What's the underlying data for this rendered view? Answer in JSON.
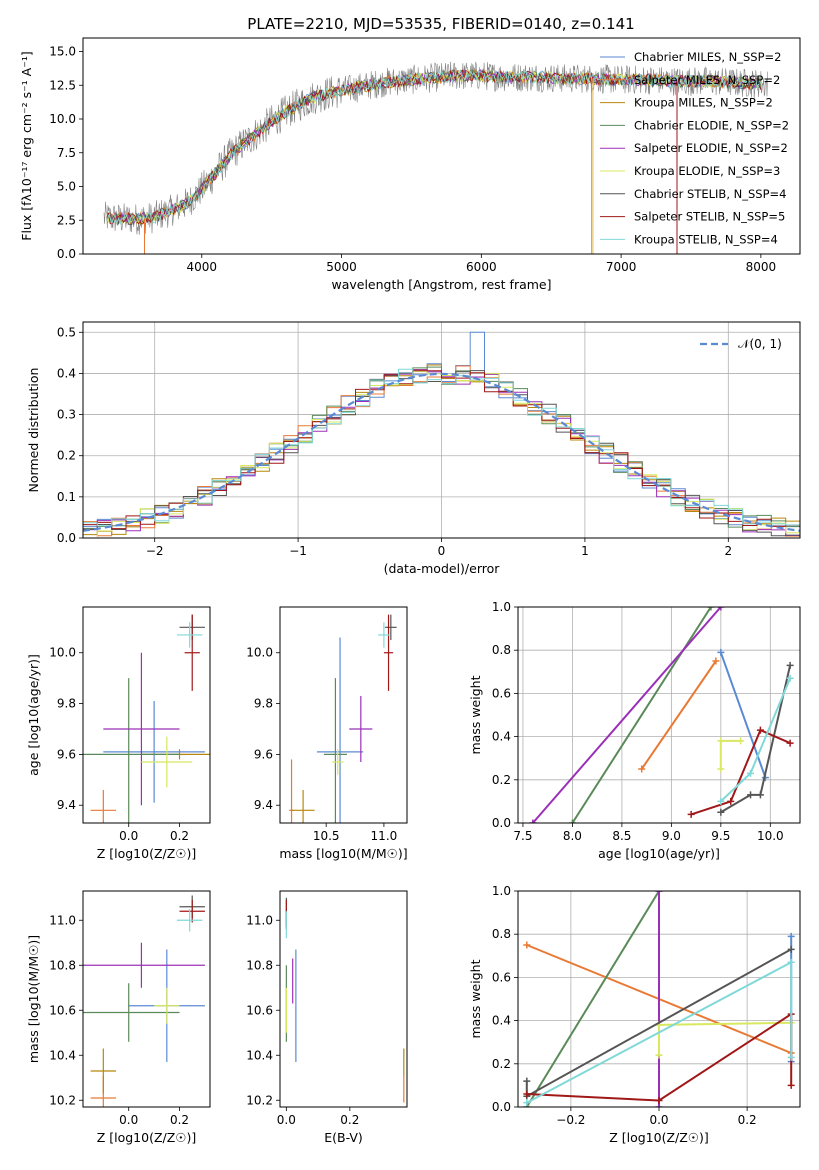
{
  "figure_title": "PLATE=2210, MJD=53535, FIBERID=0140, z=0.141",
  "series_colors": [
    "#5b8ad4",
    "#e87a35",
    "#b8860b",
    "#5a8a5a",
    "#9b30b8",
    "#d8e860",
    "#555555",
    "#a01818",
    "#80d8d8"
  ],
  "chart_data": [
    {
      "id": "spectrum",
      "type": "line",
      "title": "PLATE=2210, MJD=53535, FIBERID=0140, z=0.141",
      "xlabel": "wavelength [Angstrom, rest frame]",
      "ylabel": "Flux [fλ10⁻¹⁷ erg cm⁻² s⁻¹ A⁻¹]",
      "xlim": [
        3150,
        8280
      ],
      "ylim": [
        0,
        16
      ],
      "xticks": [
        4000,
        5000,
        6000,
        7000,
        8000
      ],
      "yticks": [
        0.0,
        2.5,
        5.0,
        7.5,
        10.0,
        12.5,
        15.0
      ],
      "ytick_labels": [
        "0.0",
        "2.5",
        "5.0",
        "7.5",
        "10.0",
        "12.5",
        "15.0"
      ],
      "grid": false,
      "legend_position": "upper-right",
      "legend": [
        "Chabrier MILES, N_SSP=2",
        "Salpeter MILES, N_SSP=2",
        "Kroupa MILES, N_SSP=2",
        "Chabrier ELODIE, N_SSP=2",
        "Salpeter ELODIE, N_SSP=2",
        "Kroupa ELODIE, N_SSP=3",
        "Chabrier STELIB, N_SSP=4",
        "Salpeter STELIB, N_SSP=5",
        "Kroupa STELIB, N_SSP=4"
      ],
      "continuum": {
        "x": [
          3300,
          3450,
          3550,
          3650,
          3700,
          3800,
          3900,
          4000,
          4100,
          4200,
          4300,
          4400,
          4500,
          4600,
          4700,
          4800,
          4900,
          5000,
          5100,
          5200,
          5300,
          5400,
          5500,
          5600,
          5700,
          5800,
          5900,
          6000,
          6200,
          6400,
          6600,
          6800,
          7000,
          7200,
          7400,
          7600,
          7800,
          8050
        ],
        "y": [
          2.7,
          2.6,
          2.6,
          2.7,
          2.9,
          3.3,
          3.8,
          4.8,
          6.0,
          7.3,
          8.2,
          9.0,
          9.8,
          10.5,
          11.1,
          11.6,
          11.9,
          12.1,
          12.3,
          12.5,
          12.7,
          12.8,
          12.9,
          13.0,
          13.1,
          13.2,
          13.2,
          13.2,
          13.1,
          13.1,
          13.0,
          13.0,
          12.9,
          12.9,
          12.8,
          12.8,
          12.7,
          12.6
        ]
      }
    },
    {
      "id": "residuals",
      "type": "histogram",
      "xlabel": "(data-model)/error",
      "ylabel": "Normed distribution",
      "xlim": [
        -2.5,
        2.5
      ],
      "ylim": [
        0,
        0.525
      ],
      "xticks": [
        -2,
        -1,
        0,
        1,
        2
      ],
      "yticks": [
        0.0,
        0.1,
        0.2,
        0.3,
        0.4,
        0.5
      ],
      "grid": true,
      "legend_position": "upper-right",
      "legend": [
        "𝒩(0, 1)"
      ],
      "bin_width": 0.1,
      "bin_start": -2.5,
      "peak": {
        "x": 0.25,
        "y": 0.5
      }
    },
    {
      "id": "age_vs_Z",
      "type": "errorbar",
      "xlabel": "Z [log10(Z/Z☉)]",
      "ylabel": "age [log10(age/yr)]",
      "xlim": [
        -0.18,
        0.32
      ],
      "ylim": [
        9.33,
        10.18
      ],
      "xticks": [
        0.0,
        0.2
      ],
      "yticks": [
        9.4,
        9.6,
        9.8,
        10.0
      ],
      "grid": false,
      "points": [
        {
          "series": 0,
          "x": 0.1,
          "y": 9.61,
          "xerr": 0.2,
          "yerr": 0.2
        },
        {
          "series": 1,
          "x": -0.1,
          "y": 9.38,
          "xerr": 0.05,
          "yerr": 0.08
        },
        {
          "series": 2,
          "x": 0.2,
          "y": 9.6,
          "xerr": 0.15,
          "yerr": 0.02
        },
        {
          "series": 3,
          "x": 0.0,
          "y": 9.6,
          "xerr": 0.2,
          "yerr": 0.3
        },
        {
          "series": 4,
          "x": 0.05,
          "y": 9.7,
          "xerr": 0.15,
          "yerr": 0.3
        },
        {
          "series": 5,
          "x": 0.15,
          "y": 9.57,
          "xerr": 0.1,
          "yerr": 0.1
        },
        {
          "series": 6,
          "x": 0.25,
          "y": 10.1,
          "xerr": 0.05,
          "yerr": 0.05
        },
        {
          "series": 7,
          "x": 0.25,
          "y": 10.0,
          "xerr": 0.03,
          "yerr": 0.15
        },
        {
          "series": 8,
          "x": 0.24,
          "y": 10.07,
          "xerr": 0.05,
          "yerr": 0.05
        }
      ]
    },
    {
      "id": "age_vs_mass",
      "type": "errorbar",
      "xlabel": "mass [log10(M/M☉)]",
      "xlim": [
        10.1,
        11.2
      ],
      "ylim": [
        9.33,
        10.18
      ],
      "xticks": [
        10.5,
        11.0
      ],
      "yticks": [
        9.4,
        9.6,
        9.8,
        10.0
      ],
      "grid": false,
      "points": [
        {
          "series": 0,
          "x": 10.62,
          "y": 9.61,
          "xerr": 0.2,
          "yerr": 0.45
        },
        {
          "series": 1,
          "x": 10.2,
          "y": 9.38,
          "xerr": 0.02,
          "yerr": 0.2
        },
        {
          "series": 2,
          "x": 10.3,
          "y": 9.38,
          "xerr": 0.1,
          "yerr": 0.08
        },
        {
          "series": 3,
          "x": 10.58,
          "y": 9.6,
          "xerr": 0.1,
          "yerr": 0.3
        },
        {
          "series": 4,
          "x": 10.8,
          "y": 9.7,
          "xerr": 0.1,
          "yerr": 0.13
        },
        {
          "series": 5,
          "x": 10.6,
          "y": 9.57,
          "xerr": 0.05,
          "yerr": 0.05
        },
        {
          "series": 6,
          "x": 11.06,
          "y": 10.1,
          "xerr": 0.05,
          "yerr": 0.05
        },
        {
          "series": 7,
          "x": 11.04,
          "y": 10.0,
          "xerr": 0.04,
          "yerr": 0.15
        },
        {
          "series": 8,
          "x": 11.0,
          "y": 10.07,
          "xerr": 0.05,
          "yerr": 0.05
        }
      ]
    },
    {
      "id": "weight_vs_age",
      "type": "line",
      "xlabel": "age [log10(age/yr)]",
      "ylabel": "mass weight",
      "xlim": [
        7.45,
        10.3
      ],
      "ylim": [
        0,
        1.0
      ],
      "xticks": [
        7.5,
        8.0,
        8.5,
        9.0,
        9.5,
        10.0
      ],
      "yticks": [
        0.0,
        0.2,
        0.4,
        0.6,
        0.8,
        1.0
      ],
      "grid": true,
      "series": [
        {
          "x": [
            9.5,
            9.95
          ],
          "y": [
            0.79,
            0.21
          ]
        },
        {
          "x": [
            8.7,
            9.45
          ],
          "y": [
            0.25,
            0.75
          ]
        },
        {
          "x": [
            8.0,
            9.4
          ],
          "y": [
            0.0,
            1.0
          ]
        },
        {
          "x": [
            7.6,
            9.5
          ],
          "y": [
            0.0,
            1.0
          ]
        },
        {
          "x": [
            9.5,
            9.5,
            9.7
          ],
          "y": [
            0.25,
            0.38,
            0.38
          ]
        },
        {
          "x": [
            9.5,
            9.8,
            9.9,
            10.2
          ],
          "y": [
            0.05,
            0.13,
            0.13,
            0.73
          ]
        },
        {
          "x": [
            9.2,
            9.6,
            9.9,
            10.2
          ],
          "y": [
            0.04,
            0.1,
            0.43,
            0.37
          ]
        },
        {
          "x": [
            9.5,
            9.8,
            10.2
          ],
          "y": [
            0.1,
            0.23,
            0.67
          ]
        }
      ]
    },
    {
      "id": "mass_vs_Z",
      "type": "errorbar",
      "xlabel": "Z [log10(Z/Z☉)]",
      "ylabel": "mass [log10(M/M☉)]",
      "xlim": [
        -0.18,
        0.32
      ],
      "ylim": [
        10.17,
        11.13
      ],
      "xticks": [
        0.0,
        0.2
      ],
      "yticks": [
        10.2,
        10.4,
        10.6,
        10.8,
        11.0
      ],
      "grid": false,
      "points": [
        {
          "series": 0,
          "x": 0.15,
          "y": 10.62,
          "xerr": 0.15,
          "yerr": 0.25
        },
        {
          "series": 1,
          "x": -0.1,
          "y": 10.21,
          "xerr": 0.05,
          "yerr": 0.1
        },
        {
          "series": 2,
          "x": -0.1,
          "y": 10.33,
          "xerr": 0.05,
          "yerr": 0.1
        },
        {
          "series": 3,
          "x": 0.0,
          "y": 10.59,
          "xerr": 0.2,
          "yerr": 0.13
        },
        {
          "series": 4,
          "x": 0.05,
          "y": 10.8,
          "xerr": 0.25,
          "yerr": 0.1
        },
        {
          "series": 5,
          "x": 0.15,
          "y": 10.62,
          "xerr": 0.05,
          "yerr": 0.08
        },
        {
          "series": 6,
          "x": 0.25,
          "y": 11.06,
          "xerr": 0.05,
          "yerr": 0.05
        },
        {
          "series": 7,
          "x": 0.25,
          "y": 11.04,
          "xerr": 0.05,
          "yerr": 0.05
        },
        {
          "series": 8,
          "x": 0.24,
          "y": 11.0,
          "xerr": 0.05,
          "yerr": 0.05
        }
      ]
    },
    {
      "id": "mass_vs_ebv",
      "type": "errorbar",
      "xlabel": "E(B-V)",
      "xlim": [
        -0.02,
        0.38
      ],
      "ylim": [
        10.17,
        11.13
      ],
      "xticks": [
        0.0,
        0.2
      ],
      "yticks": [
        10.2,
        10.4,
        10.6,
        10.8,
        11.0
      ],
      "grid": false,
      "points": [
        {
          "series": 0,
          "x": 0.03,
          "y": 10.62,
          "xerr": 0.0,
          "yerr": 0.25
        },
        {
          "series": 1,
          "x": 0.37,
          "y": 10.25,
          "xerr": 0.0,
          "yerr": 0.06
        },
        {
          "series": 2,
          "x": 0.37,
          "y": 10.37,
          "xerr": 0.0,
          "yerr": 0.06
        },
        {
          "series": 3,
          "x": 0.0,
          "y": 10.63,
          "xerr": 0.0,
          "yerr": 0.17
        },
        {
          "series": 4,
          "x": 0.02,
          "y": 10.73,
          "xerr": 0.0,
          "yerr": 0.1
        },
        {
          "series": 5,
          "x": 0.0,
          "y": 10.6,
          "xerr": 0.0,
          "yerr": 0.1
        },
        {
          "series": 6,
          "x": 0.0,
          "y": 11.03,
          "xerr": 0.0,
          "yerr": 0.07
        },
        {
          "series": 7,
          "x": 0.0,
          "y": 11.03,
          "xerr": 0.0,
          "yerr": 0.06
        },
        {
          "series": 8,
          "x": 0.0,
          "y": 10.98,
          "xerr": 0.0,
          "yerr": 0.06
        }
      ]
    },
    {
      "id": "weight_vs_Z",
      "type": "line",
      "xlabel": "Z [log10(Z/Z☉)]",
      "ylabel": "mass weight",
      "xlim": [
        -0.32,
        0.32
      ],
      "ylim": [
        0,
        1.0
      ],
      "xticks": [
        -0.2,
        0.0,
        0.2
      ],
      "yticks": [
        0.0,
        0.2,
        0.4,
        0.6,
        0.8,
        1.0
      ],
      "grid": true,
      "series": [
        {
          "x": [
            0.3,
            0.3
          ],
          "y": [
            0.79,
            0.21
          ]
        },
        {
          "x": [
            -0.3,
            0.3
          ],
          "y": [
            0.75,
            0.25
          ]
        },
        {
          "x": [
            -0.3,
            0.0
          ],
          "y": [
            0.0,
            1.0
          ]
        },
        {
          "x": [
            0.0,
            0.0
          ],
          "y": [
            0.0,
            1.0
          ]
        },
        {
          "x": [
            0.0,
            0.0,
            0.3
          ],
          "y": [
            0.24,
            0.38,
            0.39
          ]
        },
        {
          "x": [
            -0.3,
            -0.3,
            0.3
          ],
          "y": [
            0.12,
            0.05,
            0.73
          ]
        },
        {
          "x": [
            -0.3,
            0.0,
            0.3,
            0.3
          ],
          "y": [
            0.06,
            0.03,
            0.43,
            0.1
          ]
        },
        {
          "x": [
            -0.3,
            0.3,
            0.3
          ],
          "y": [
            0.02,
            0.67,
            0.23
          ]
        }
      ]
    }
  ]
}
